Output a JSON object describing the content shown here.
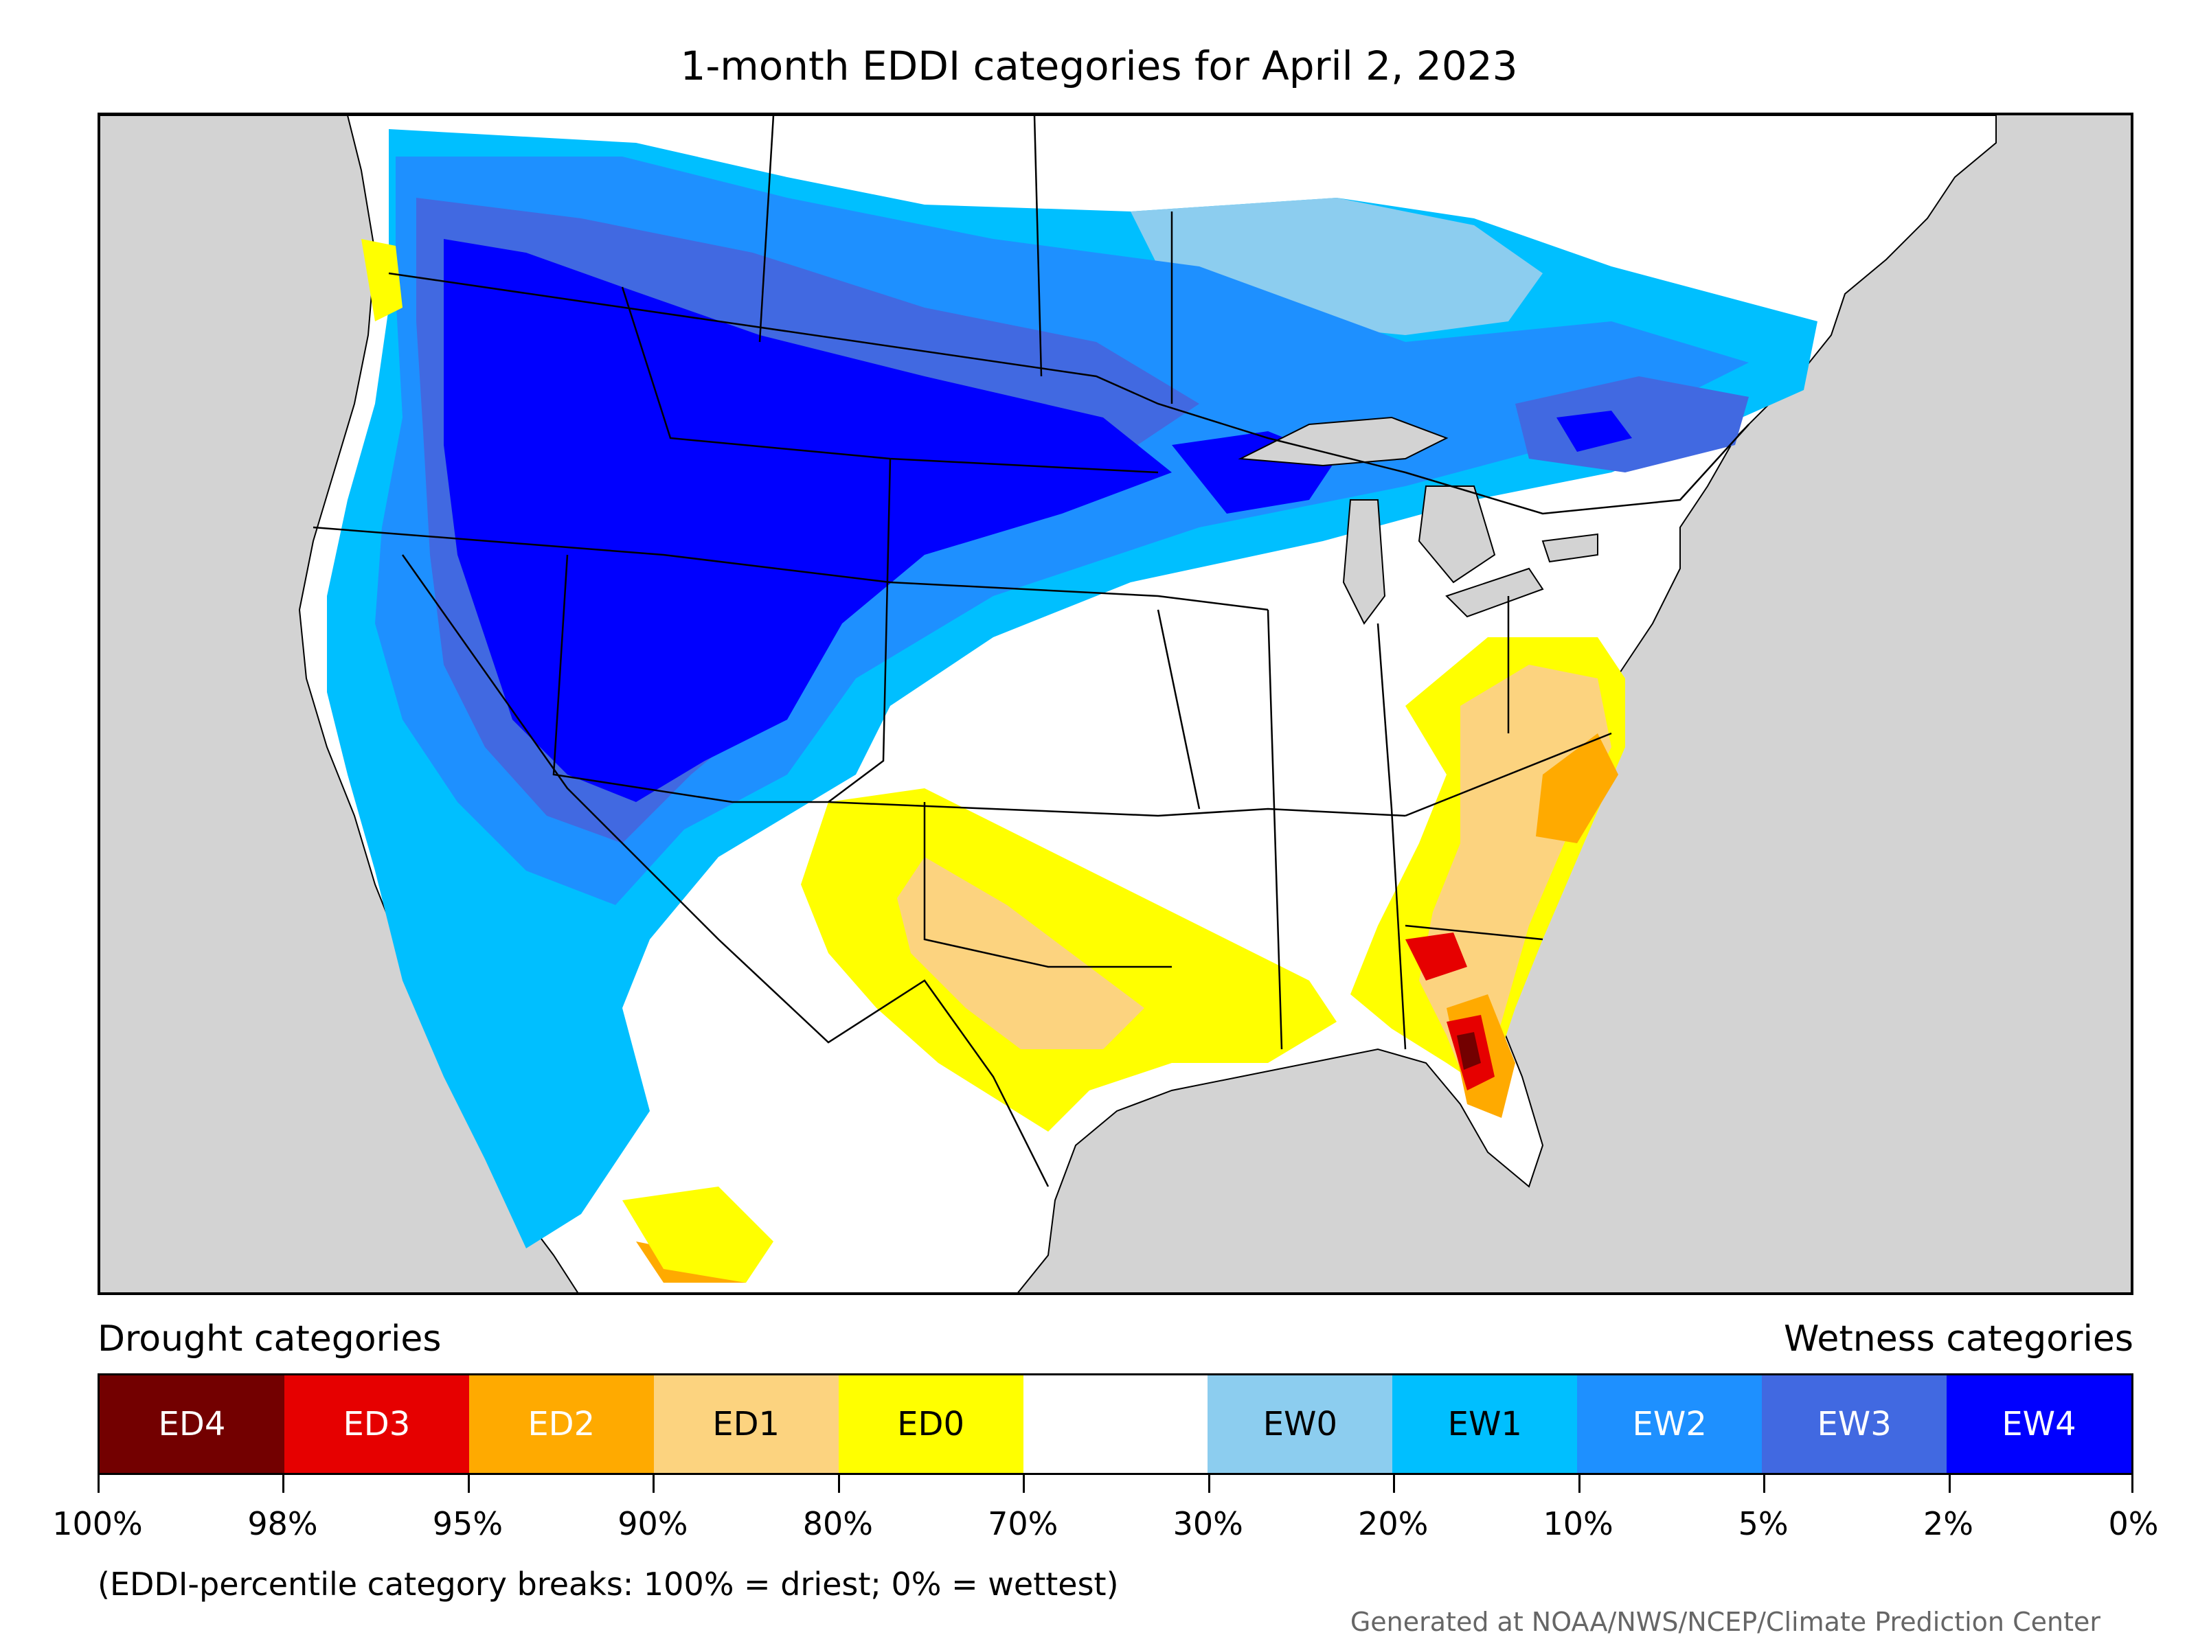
{
  "title": "1-month EDDI categories for April 2, 2023",
  "legend": {
    "left_heading": "Drought categories",
    "right_heading": "Wetness categories",
    "categories": [
      {
        "label": "ED4",
        "color": "#730000",
        "text_color": "#ffffff"
      },
      {
        "label": "ED3",
        "color": "#e60000",
        "text_color": "#ffffff"
      },
      {
        "label": "ED2",
        "color": "#ffaa00",
        "text_color": "#ffffff"
      },
      {
        "label": "ED1",
        "color": "#fcd37f",
        "text_color": "#000000"
      },
      {
        "label": "ED0",
        "color": "#ffff00",
        "text_color": "#000000"
      },
      {
        "label": "",
        "color": "#ffffff",
        "text_color": "#000000"
      },
      {
        "label": "EW0",
        "color": "#8ccdef",
        "text_color": "#000000"
      },
      {
        "label": "EW1",
        "color": "#00bfff",
        "text_color": "#000000"
      },
      {
        "label": "EW2",
        "color": "#1e90ff",
        "text_color": "#ffffff"
      },
      {
        "label": "EW3",
        "color": "#4169e1",
        "text_color": "#ffffff"
      },
      {
        "label": "EW4",
        "color": "#0000ff",
        "text_color": "#ffffff"
      }
    ],
    "tick_labels": [
      "100%",
      "98%",
      "95%",
      "90%",
      "80%",
      "70%",
      "30%",
      "20%",
      "10%",
      "5%",
      "2%",
      "0%"
    ]
  },
  "note": "(EDDI-percentile category breaks: 100% = driest; 0% = wettest)",
  "credit": "Generated at NOAA/NWS/NCEP/Climate Prediction Center",
  "map": {
    "ocean_color": "#d3d3d3",
    "land_color": "#ffffff",
    "lake_color": "#d3d3d3"
  }
}
